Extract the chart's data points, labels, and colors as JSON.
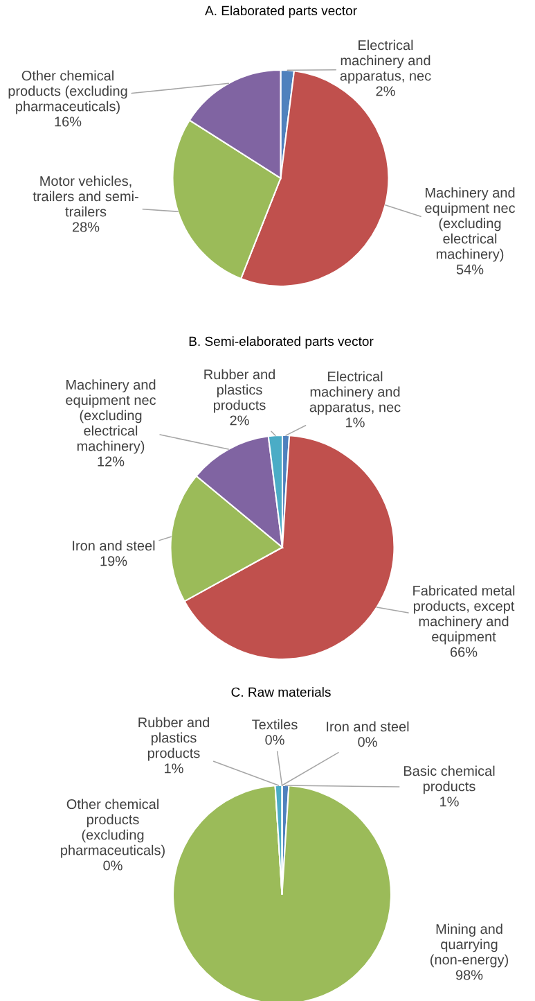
{
  "chart_data": [
    {
      "type": "pie",
      "title": "A. Elaborated parts vector",
      "categories": [
        "Electrical\nmachinery and\napparatus, nec",
        "Machinery and\nequipment nec\n(excluding\nelectrical\nmachinery)",
        "Motor vehicles,\ntrailers and semi-\ntrailers",
        "Other chemical\nproducts (excluding\npharmaceuticals)"
      ],
      "values": [
        2,
        54,
        28,
        16
      ],
      "value_labels": [
        "2%",
        "54%",
        "28%",
        "16%"
      ],
      "colors": [
        "#4f81bd",
        "#c0504d",
        "#9bbb59",
        "#8064a2"
      ]
    },
    {
      "type": "pie",
      "title": "B. Semi-elaborated parts vector",
      "categories": [
        "Electrical\nmachinery and\napparatus, nec",
        "Fabricated metal\nproducts, except\nmachinery and\nequipment",
        "Iron and steel",
        "Machinery and\nequipment nec\n(excluding\nelectrical\nmachinery)",
        "Rubber and\nplastics\nproducts"
      ],
      "values": [
        1,
        66,
        19,
        12,
        2
      ],
      "value_labels": [
        "1%",
        "66%",
        "19%",
        "12%",
        "2%"
      ],
      "colors": [
        "#4f81bd",
        "#c0504d",
        "#9bbb59",
        "#8064a2",
        "#4bacc6"
      ]
    },
    {
      "type": "pie",
      "title": "C. Raw materials",
      "categories": [
        "Iron and steel",
        "Basic chemical\nproducts",
        "Mining and\nquarrying\n(non-energy)",
        "Other chemical\nproducts\n(excluding\npharmaceuticals)",
        "Rubber and\nplastics\nproducts",
        "Textiles"
      ],
      "values": [
        0,
        1,
        98,
        0,
        1,
        0
      ],
      "value_labels": [
        "0%",
        "1%",
        "98%",
        "0%",
        "1%",
        "0%"
      ],
      "colors": [
        "#4f81bd",
        "#4f81bd",
        "#9bbb59",
        "#8064a2",
        "#4bacc6",
        "#f79646"
      ]
    }
  ]
}
